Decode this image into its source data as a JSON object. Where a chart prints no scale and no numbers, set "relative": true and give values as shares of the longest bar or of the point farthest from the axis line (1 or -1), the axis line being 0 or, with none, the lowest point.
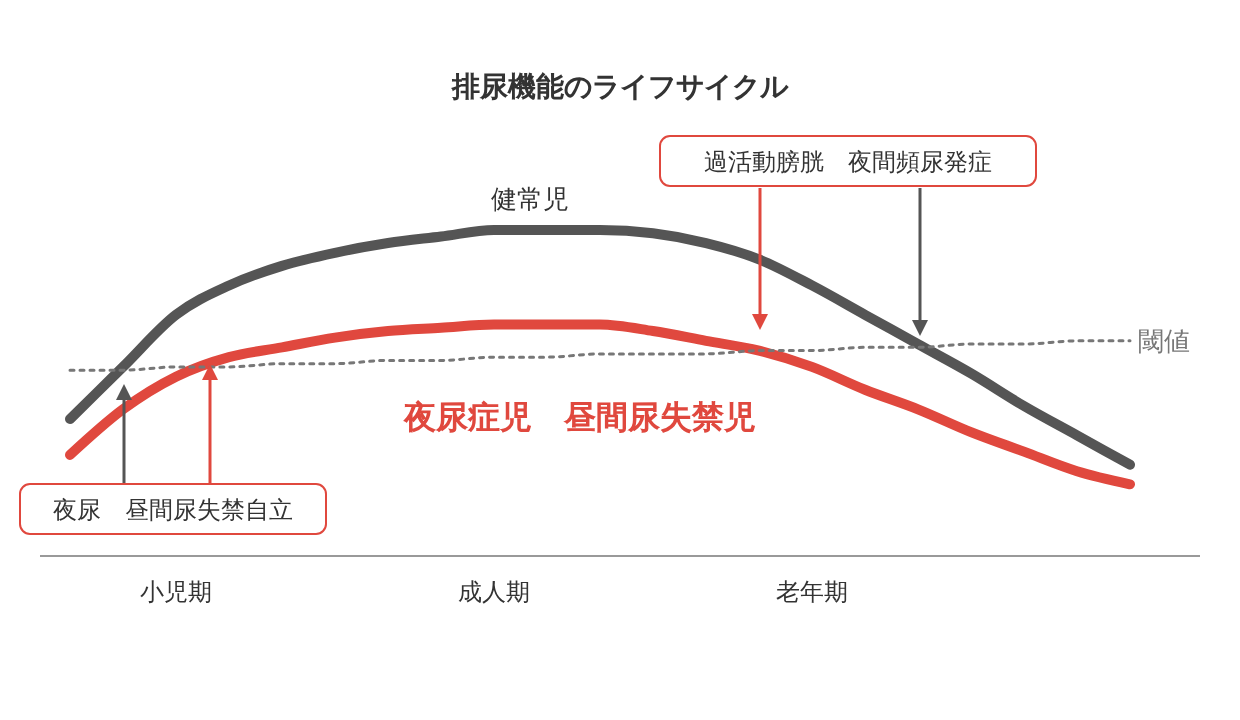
{
  "chart_data": {
    "type": "line",
    "relative": true,
    "title": "排尿機能のライフサイクル",
    "categories": [
      null,
      null,
      "小児期",
      null,
      null,
      null,
      null,
      null,
      "成人期",
      null,
      null,
      null,
      null,
      null,
      "老年期",
      null,
      null,
      null,
      null,
      null,
      null
    ],
    "series": [
      {
        "name": "健常児",
        "color": "#555555",
        "values": [
          0.42,
          0.58,
          0.74,
          0.83,
          0.89,
          0.93,
          0.96,
          0.98,
          1.0,
          1.0,
          1.0,
          0.99,
          0.96,
          0.91,
          0.83,
          0.74,
          0.65,
          0.56,
          0.46,
          0.37,
          0.28
        ]
      },
      {
        "name": "夜尿症児　昼間尿失禁児",
        "color": "#e0483e",
        "values": [
          0.31,
          0.45,
          0.55,
          0.61,
          0.64,
          0.67,
          0.69,
          0.7,
          0.71,
          0.71,
          0.71,
          0.69,
          0.66,
          0.63,
          0.58,
          0.51,
          0.45,
          0.38,
          0.32,
          0.26,
          0.22
        ]
      },
      {
        "name": "閾値",
        "color": "#777777",
        "line_style": "dotted",
        "values": [
          0.57,
          0.57,
          0.58,
          0.58,
          0.59,
          0.59,
          0.6,
          0.6,
          0.61,
          0.61,
          0.62,
          0.62,
          0.62,
          0.63,
          0.63,
          0.64,
          0.64,
          0.65,
          0.65,
          0.66,
          0.66
        ]
      }
    ],
    "annotations": [
      "過活動膀胱　夜間頻尿発症",
      "夜尿　昼間尿失禁自立"
    ]
  }
}
